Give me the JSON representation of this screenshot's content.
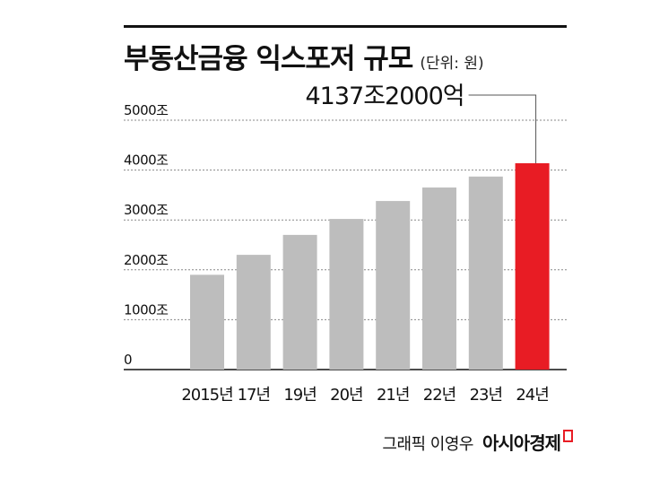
{
  "title": "부동산금융 익스포저 규모",
  "unit": "(단위: 원)",
  "footer": {
    "credit": "그래픽 이영우",
    "brand": "아시아경제"
  },
  "colors": {
    "bar": "#bdbdbd",
    "highlight": "#e81c24",
    "grid": "#888888",
    "text": "#111111"
  },
  "chart_data": {
    "type": "bar",
    "categories": [
      "2015년",
      "17년",
      "19년",
      "20년",
      "21년",
      "22년",
      "23년",
      "24년"
    ],
    "values": [
      1900,
      2300,
      2700,
      3020,
      3380,
      3650,
      3870,
      4137.2
    ],
    "highlight_index": 7,
    "annotation": "4137조2000억",
    "ylim": [
      0,
      5000
    ],
    "yticks": [
      0,
      1000,
      2000,
      3000,
      4000,
      5000
    ],
    "ytick_labels": [
      "0",
      "1000조",
      "2000조",
      "3000조",
      "4000조",
      "5000조"
    ],
    "grid": true,
    "legend": "none"
  }
}
